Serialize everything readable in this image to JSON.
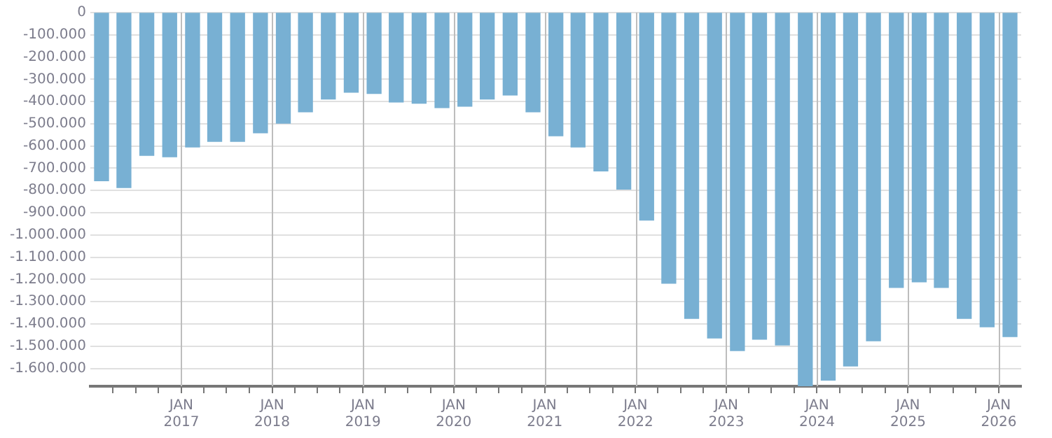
{
  "chart_data": {
    "type": "bar",
    "x": [
      "2016-02-15",
      "2016-05-15",
      "2016-08-15",
      "2016-11-15",
      "2017-02-15",
      "2017-05-15",
      "2017-08-15",
      "2017-11-15",
      "2018-02-15",
      "2018-05-15",
      "2018-08-15",
      "2018-11-15",
      "2019-02-15",
      "2019-05-15",
      "2019-08-15",
      "2019-11-15",
      "2020-02-15",
      "2020-05-15",
      "2020-08-15",
      "2020-11-15",
      "2021-02-15",
      "2021-05-15",
      "2021-08-15",
      "2021-11-15",
      "2022-02-15",
      "2022-05-15",
      "2022-08-15",
      "2022-11-15",
      "2023-02-15",
      "2023-05-15",
      "2023-08-15",
      "2023-11-15",
      "2024-02-15",
      "2024-05-15",
      "2024-08-15",
      "2024-11-15",
      "2025-02-15",
      "2025-05-15",
      "2025-08-15",
      "2025-11-15",
      "2026-02-15"
    ],
    "series": [
      {
        "color": "#78b0d3",
        "values": [
          -756000,
          -787000,
          -642000,
          -648000,
          -604000,
          -579000,
          -579000,
          -541000,
          -497000,
          -446000,
          -389000,
          -358000,
          -364000,
          -402000,
          -408000,
          -427000,
          -421000,
          -389000,
          -371000,
          -446000,
          -554000,
          -604000,
          -712000,
          -794000,
          -933000,
          -1217000,
          -1375000,
          -1463000,
          -1520000,
          -1469000,
          -1495000,
          -1680000,
          -1653000,
          -1589000,
          -1476000,
          -1236000,
          -1211000,
          -1236000,
          -1375000,
          -1413000,
          -1457000
        ]
      }
    ],
    "xlim": [
      "2016-01-01",
      "2026-04-01"
    ],
    "xticks": [
      {
        "value": "2016-04-01",
        "label": null
      },
      {
        "value": "2016-07-01",
        "label": null
      },
      {
        "value": "2016-10-01",
        "label": null
      },
      {
        "value": "2017-01-01",
        "label": "JAN 2017"
      },
      {
        "value": "2017-04-01",
        "label": null
      },
      {
        "value": "2017-07-01",
        "label": null
      },
      {
        "value": "2017-10-01",
        "label": null
      },
      {
        "value": "2018-01-01",
        "label": "JAN 2018"
      },
      {
        "value": "2018-04-01",
        "label": null
      },
      {
        "value": "2018-07-01",
        "label": null
      },
      {
        "value": "2018-10-01",
        "label": null
      },
      {
        "value": "2019-01-01",
        "label": "JAN 2019"
      },
      {
        "value": "2019-04-01",
        "label": null
      },
      {
        "value": "2019-07-01",
        "label": null
      },
      {
        "value": "2019-10-01",
        "label": null
      },
      {
        "value": "2020-01-01",
        "label": "JAN 2020"
      },
      {
        "value": "2020-04-01",
        "label": null
      },
      {
        "value": "2020-07-01",
        "label": null
      },
      {
        "value": "2020-10-01",
        "label": null
      },
      {
        "value": "2021-01-01",
        "label": "JAN 2021"
      },
      {
        "value": "2021-04-01",
        "label": null
      },
      {
        "value": "2021-07-01",
        "label": null
      },
      {
        "value": "2021-10-01",
        "label": null
      },
      {
        "value": "2022-01-01",
        "label": "JAN 2022"
      },
      {
        "value": "2022-04-01",
        "label": null
      },
      {
        "value": "2022-07-01",
        "label": null
      },
      {
        "value": "2022-10-01",
        "label": null
      },
      {
        "value": "2023-01-01",
        "label": "JAN 2023"
      },
      {
        "value": "2023-04-01",
        "label": null
      },
      {
        "value": "2023-07-01",
        "label": null
      },
      {
        "value": "2023-10-01",
        "label": null
      },
      {
        "value": "2024-01-01",
        "label": "JAN 2024"
      },
      {
        "value": "2024-04-01",
        "label": null
      },
      {
        "value": "2024-07-01",
        "label": null
      },
      {
        "value": "2024-10-01",
        "label": null
      },
      {
        "value": "2025-01-01",
        "label": "JAN 2025"
      },
      {
        "value": "2025-04-01",
        "label": null
      },
      {
        "value": "2025-07-01",
        "label": null
      },
      {
        "value": "2025-10-01",
        "label": null
      },
      {
        "value": "2026-01-01",
        "label": "JAN 2026"
      }
    ],
    "ylim": [
      -1680000,
      0
    ],
    "yticks": [
      {
        "value": 0,
        "label": "0"
      },
      {
        "value": -100000,
        "label": "-100.000"
      },
      {
        "value": -200000,
        "label": "-200.000"
      },
      {
        "value": -300000,
        "label": "-300.000"
      },
      {
        "value": -400000,
        "label": "-400.000"
      },
      {
        "value": -500000,
        "label": "-500.000"
      },
      {
        "value": -600000,
        "label": "-600.000"
      },
      {
        "value": -700000,
        "label": "-700.000"
      },
      {
        "value": -800000,
        "label": "-800.000"
      },
      {
        "value": -900000,
        "label": "-900.000"
      },
      {
        "value": -1000000,
        "label": "-1.000.000"
      },
      {
        "value": -1100000,
        "label": "-1.100.000"
      },
      {
        "value": -1200000,
        "label": "-1.200.000"
      },
      {
        "value": -1300000,
        "label": "-1.300.000"
      },
      {
        "value": -1400000,
        "label": "-1.400.000"
      },
      {
        "value": -1500000,
        "label": "-1.500.000"
      },
      {
        "value": -1600000,
        "label": "-1.600.000"
      }
    ],
    "grid": true
  }
}
